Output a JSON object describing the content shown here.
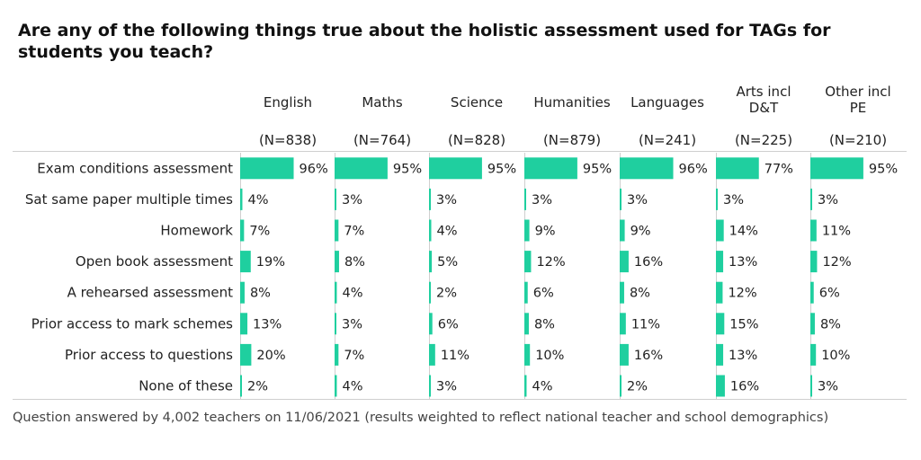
{
  "title": "Are any of the following things true about the holistic assessment used for TAGs for students you teach?",
  "footnote": "Question answered by 4,002 teachers on 11/06/2021 (results weighted to reflect national teacher and school demographics)",
  "colors": {
    "bar": "#1fcf9f",
    "axis": "#cfcfcf",
    "text": "#222222"
  },
  "chart_data": {
    "type": "bar",
    "orientation": "horizontal",
    "layout": "small-multiples",
    "title": "Are any of the following things true about the holistic assessment used for TAGs for students you teach?",
    "categories": [
      "Exam conditions assessment",
      "Sat same paper multiple times",
      "Homework",
      "Open book assessment",
      "A rehearsed assessment",
      "Prior access to mark schemes",
      "Prior access to questions",
      "None of these"
    ],
    "series": [
      {
        "name": "English",
        "n_label": "(N=838)",
        "values": [
          96,
          4,
          7,
          19,
          8,
          13,
          20,
          2
        ]
      },
      {
        "name": "Maths",
        "n_label": "(N=764)",
        "values": [
          95,
          3,
          7,
          8,
          4,
          3,
          7,
          4
        ]
      },
      {
        "name": "Science",
        "n_label": "(N=828)",
        "values": [
          95,
          3,
          4,
          5,
          2,
          6,
          11,
          3
        ]
      },
      {
        "name": "Humanities",
        "n_label": "(N=879)",
        "values": [
          95,
          3,
          9,
          12,
          6,
          8,
          10,
          4
        ]
      },
      {
        "name": "Languages",
        "n_label": "(N=241)",
        "values": [
          96,
          3,
          9,
          16,
          8,
          11,
          16,
          2
        ]
      },
      {
        "name": "Arts incl D&T",
        "n_label": "(N=225)",
        "values": [
          77,
          3,
          14,
          13,
          12,
          15,
          13,
          16
        ]
      },
      {
        "name": "Other incl PE",
        "n_label": "(N=210)",
        "values": [
          95,
          3,
          11,
          12,
          6,
          8,
          10,
          3
        ]
      }
    ],
    "value_suffix": "%",
    "xlim": [
      0,
      100
    ],
    "grid": false,
    "legend": "none"
  }
}
